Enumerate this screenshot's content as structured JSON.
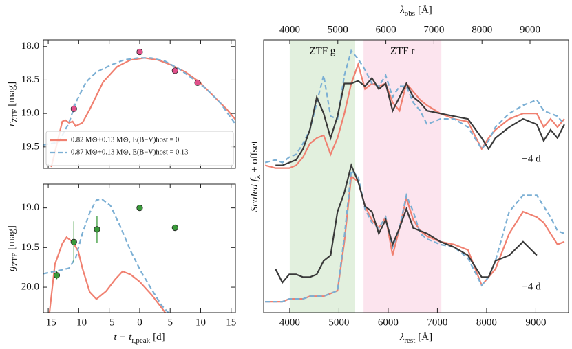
{
  "chart_data": [
    {
      "type": "line",
      "ylabel": "r",
      "ylabel_sub": "ZTF",
      "ylabel_unit": "[mag]",
      "xlim": [
        -15.8,
        15.7
      ],
      "ylim": [
        17.9,
        19.82
      ],
      "y_inverted": true,
      "xticks": [
        -15,
        -10,
        -5,
        0,
        5,
        10,
        15
      ],
      "yticks": [
        {
          "value": 18,
          "label": "18.0"
        },
        {
          "value": 18.5,
          "label": "18.5"
        },
        {
          "value": 19,
          "label": "19.0"
        },
        {
          "value": 19.5,
          "label": "19.5"
        }
      ],
      "legend": "lower left",
      "series": [
        {
          "name": "0.82 M⊙+0.13 M⊙, E(B−V)host = 0",
          "color": "#f08070",
          "dashed": false,
          "x": [
            -14.5,
            -14.1,
            -13.3,
            -12.7,
            -12.2,
            -11.6,
            -11.0,
            -10.5,
            -9.4,
            -8.2,
            -6.0,
            -3.7,
            -1.5,
            0.8,
            3.0,
            5.3,
            7.5,
            9.8,
            12.0,
            14.3,
            15.7
          ],
          "values": [
            19.8,
            19.65,
            19.35,
            19.12,
            19.1,
            19.14,
            19.12,
            19.19,
            19.14,
            18.94,
            18.53,
            18.3,
            18.2,
            18.17,
            18.2,
            18.28,
            18.38,
            18.53,
            18.73,
            18.94,
            19.09
          ]
        },
        {
          "name": "0.87 M⊙+0.13 M⊙, E(B−V)host = 0.13",
          "color": "#7bafd4",
          "dashed": true,
          "x": [
            -15.8,
            -13.3,
            -11.6,
            -10.5,
            -8.8,
            -7.1,
            -4.8,
            -2.6,
            -0.3,
            1.9,
            4.2,
            6.4,
            8.7,
            10.9,
            13.2,
            15.7
          ],
          "values": [
            19.47,
            19.43,
            19.14,
            18.84,
            18.53,
            18.38,
            18.28,
            18.2,
            18.17,
            18.17,
            18.22,
            18.33,
            18.48,
            18.63,
            18.84,
            19.16
          ]
        }
      ],
      "points": {
        "color": "#e0508a",
        "x": [
          -10.8,
          0,
          5.8,
          9.5
        ],
        "values": [
          18.93,
          18.08,
          18.36,
          18.54
        ],
        "errors": [
          0.06,
          null,
          null,
          null
        ]
      }
    },
    {
      "type": "line",
      "ylabel": "g",
      "ylabel_sub": "ZTF",
      "ylabel_unit": "[mag]",
      "xlabel": "t − t",
      "xlabel_sub": "r,peak",
      "xlabel_unit": "[d]",
      "xlim": [
        -15.8,
        15.7
      ],
      "ylim": [
        18.7,
        20.32
      ],
      "y_inverted": true,
      "xticks": [
        {
          "value": -15,
          "label": "−15"
        },
        {
          "value": -10,
          "label": "−10"
        },
        {
          "value": -5,
          "label": "−5"
        },
        0,
        5,
        10,
        15
      ],
      "yticks": [
        {
          "value": 19,
          "label": "19.0"
        },
        {
          "value": 19.5,
          "label": "19.5"
        },
        {
          "value": 20,
          "label": "20.0"
        }
      ],
      "series": [
        {
          "color": "#f08070",
          "dashed": false,
          "x": [
            -14.8,
            -13.9,
            -12.7,
            -12.0,
            -11.0,
            -10.1,
            -9.4,
            -8.2,
            -7.1,
            -5.5,
            -4.0,
            -2.8,
            -1.5,
            0,
            2.0,
            4.2
          ],
          "values": [
            20.32,
            19.71,
            19.45,
            19.37,
            19.43,
            19.54,
            19.76,
            20.06,
            20.15,
            20.05,
            19.9,
            19.8,
            19.84,
            19.93,
            20.1,
            20.32
          ]
        },
        {
          "color": "#7bafd4",
          "dashed": true,
          "x": [
            -15.8,
            -13.9,
            -12.7,
            -11.6,
            -10.5,
            -9.4,
            -8.2,
            -7.1,
            -6.2,
            -4.8,
            -3.2,
            -1.5,
            0.2,
            1.9,
            3.6,
            4.7
          ],
          "values": [
            19.83,
            19.8,
            19.78,
            19.76,
            19.63,
            19.32,
            19.06,
            18.9,
            18.89,
            18.97,
            19.23,
            19.54,
            19.8,
            20.02,
            20.23,
            20.32
          ]
        }
      ],
      "points": {
        "color": "#3a9a3a",
        "x": [
          -13.6,
          -10.8,
          -7.0,
          0,
          5.8
        ],
        "values": [
          19.85,
          19.43,
          19.27,
          19.0,
          19.25
        ],
        "errors": [
          0.05,
          0.26,
          0.17,
          null,
          0.04
        ]
      }
    },
    {
      "type": "line",
      "xlabel": "λ",
      "xlabel_sub": "rest",
      "xlabel_unit": "[Å]",
      "x2label": "λ",
      "x2label_sub": "obs",
      "x2label_unit": "[Å]",
      "ylabel": "Scaled f",
      "ylabel_sub": "λ",
      "ylabel_unit": "+ offset",
      "xlim": [
        3470,
        9665
      ],
      "x2lim": [
        3456,
        9802
      ],
      "ylim": [
        0,
        100
      ],
      "xticks": [
        4000,
        5000,
        6000,
        7000,
        8000,
        9000
      ],
      "x2ticks": [
        4000,
        5000,
        6000,
        7000,
        8000,
        9000
      ],
      "bands": [
        {
          "label": "ZTF g",
          "range": [
            4000,
            5330
          ],
          "color": "#e2f0de",
          "label_color": "#4fa845"
        },
        {
          "label": "ZTF r",
          "range": [
            5500,
            7080
          ],
          "color": "#fce4ee",
          "label_color": "#e8739c"
        }
      ],
      "annotations": [
        "−4 d",
        "+4 d"
      ],
      "x": [
        3500,
        3710,
        3850,
        3990,
        4130,
        4270,
        4410,
        4550,
        4690,
        4830,
        4970,
        5110,
        5250,
        5390,
        5530,
        5670,
        5810,
        5950,
        6090,
        6230,
        6370,
        6510,
        6650,
        6790,
        7060,
        7340,
        7620,
        7900,
        8040,
        8180,
        8460,
        8740,
        9020,
        9160,
        9300,
        9440,
        9580
      ],
      "series": [
        {
          "color": "#f08070",
          "dashed": false,
          "values": [
            54,
            53,
            53,
            53,
            54,
            57,
            62,
            64,
            65,
            58,
            64,
            73,
            84,
            91,
            82,
            84,
            83,
            84,
            77,
            74,
            84,
            81,
            78,
            76,
            73,
            71,
            70,
            60,
            64,
            67,
            71,
            73,
            73,
            68,
            71,
            68,
            71
          ]
        },
        {
          "color": "#7bafd4",
          "dashed": true,
          "values": [
            55,
            56,
            55,
            57,
            58,
            62,
            67,
            77,
            87,
            72,
            71,
            87,
            96,
            93,
            89,
            84,
            83,
            87,
            79,
            83,
            83,
            77,
            74,
            69,
            71,
            71,
            68,
            60,
            63,
            68,
            73,
            76,
            78,
            74,
            73,
            72,
            69
          ]
        },
        {
          "color": "#3a3a3a",
          "dashed": false,
          "values": [
            null,
            54,
            54,
            55,
            56,
            60,
            67,
            79,
            73,
            64,
            72,
            84,
            84,
            85,
            83,
            86,
            82,
            84,
            74,
            79,
            84,
            79,
            77,
            74,
            73,
            72,
            71,
            64,
            60,
            64,
            68,
            71,
            69,
            63,
            67,
            64,
            69
          ]
        },
        {
          "color": "#f08070",
          "dashed": false,
          "values": [
            4,
            4,
            4,
            5,
            5,
            5,
            6,
            6,
            6,
            7,
            8,
            26,
            50,
            48,
            39,
            34,
            31,
            35,
            21,
            31,
            42,
            34,
            30,
            28,
            26,
            25,
            23,
            10,
            13,
            16,
            29,
            37,
            35,
            33,
            29,
            25,
            26
          ]
        },
        {
          "color": "#7bafd4",
          "dashed": true,
          "values": [
            4,
            4,
            4,
            5,
            5,
            5,
            6,
            6,
            6,
            7,
            8,
            28,
            52,
            50,
            38,
            33,
            31,
            35,
            24,
            31,
            43,
            37,
            29,
            27,
            25,
            24,
            20,
            10,
            13,
            19,
            37,
            43,
            43,
            39,
            35,
            30,
            29
          ]
        },
        {
          "color": "#3a3a3a",
          "dashed": false,
          "values": [
            null,
            16,
            11,
            14,
            14,
            13,
            13,
            14,
            19,
            21,
            37,
            44,
            54,
            48,
            39,
            37,
            29,
            34,
            25,
            31,
            38,
            31,
            30,
            29,
            26,
            24,
            21,
            13,
            13,
            19,
            21,
            26,
            21,
            null,
            null,
            null,
            null
          ]
        }
      ]
    }
  ]
}
